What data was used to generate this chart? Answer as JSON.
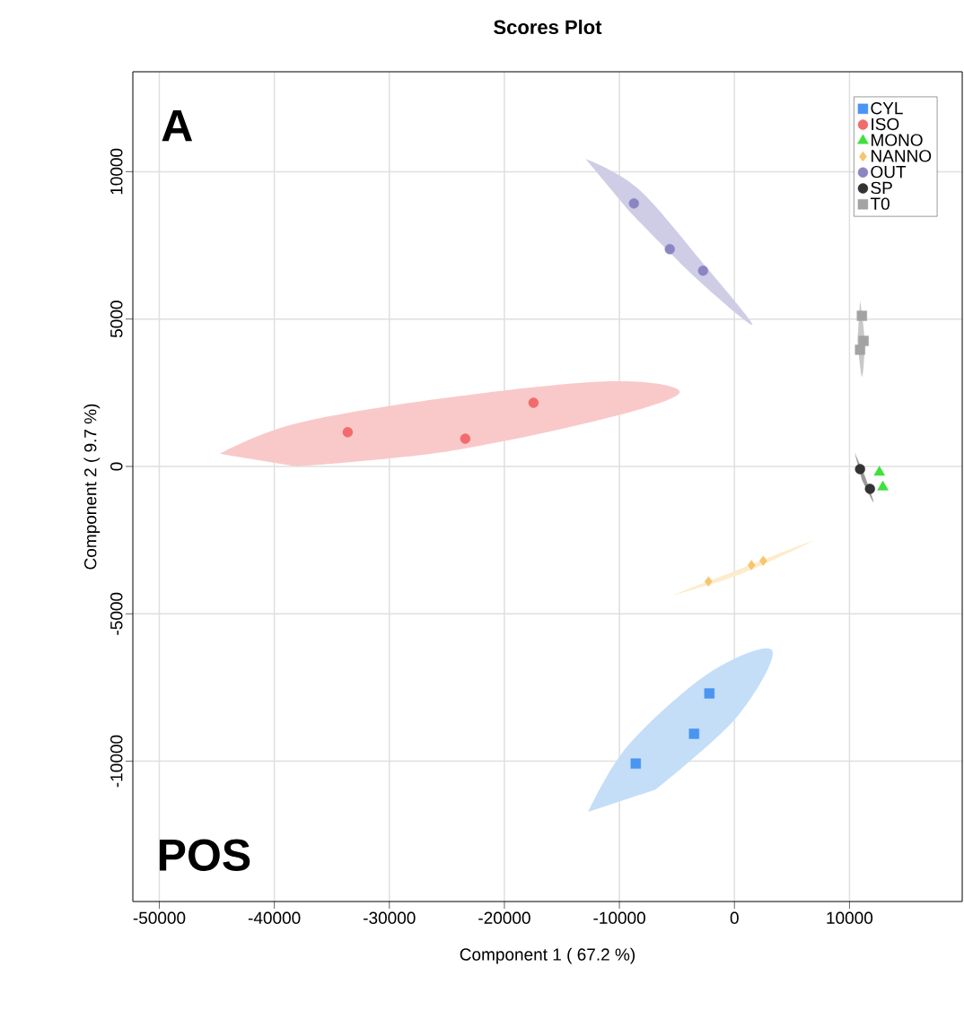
{
  "chart_data": {
    "type": "scatter",
    "title": "Scores Plot",
    "xlabel": "Component 1 ( 67.2 %)",
    "ylabel": "Component 2 ( 9.7 %)",
    "annotations": [
      "A",
      "POS"
    ],
    "xlim": [
      -52300,
      19800
    ],
    "ylim": [
      -14760,
      13390
    ],
    "xticks": [
      -50000,
      -40000,
      -30000,
      -20000,
      -10000,
      0,
      10000
    ],
    "yticks": [
      -10000,
      -5000,
      0,
      5000,
      10000
    ],
    "grid": true,
    "legend": "top right",
    "series": [
      {
        "type": "area",
        "color": "#f9c9c9",
        "x": [
          -44770,
          -38070,
          -24800,
          -10760,
          -4760,
          -10760,
          -24800,
          -38070
        ],
        "values": [
          430,
          1460,
          2340,
          2890,
          2530,
          1670,
          520,
          0
        ]
      },
      {
        "type": "area",
        "color": "#cfcde6",
        "x": [
          -12950,
          -8420,
          -2960,
          1560,
          -3350,
          -9200
        ],
        "values": [
          10440,
          9440,
          7000,
          4810,
          6390,
          8680
        ]
      },
      {
        "type": "area",
        "color": "#c4def8",
        "x": [
          -12710,
          -9200,
          -2180,
          3280,
          160,
          -6860
        ],
        "values": [
          -11720,
          -9440,
          -7000,
          -6240,
          -8520,
          -10960
        ]
      },
      {
        "type": "area",
        "color": "#fdebcc",
        "x": [
          -5690,
          550,
          6790,
          940
        ],
        "values": [
          -4410,
          -3650,
          -2530,
          -3410
        ]
      },
      {
        "type": "area",
        "color": "#c8c8c8",
        "x": [
          10920,
          11310,
          11080,
          10690
        ],
        "values": [
          5630,
          4260,
          3040,
          4260
        ]
      },
      {
        "type": "area",
        "color": "#9a9a9a",
        "x": [
          10450,
          11310,
          12090,
          11080
        ],
        "values": [
          460,
          -300,
          -1220,
          -460
        ]
      },
      {
        "name": "CYL",
        "color": "#4a94f2",
        "marker": "square",
        "x": [
          -8580,
          -3510,
          -2180
        ],
        "values": [
          -10080,
          -9070,
          -7700
        ]
      },
      {
        "name": "ISO",
        "color": "#f26b6b",
        "marker": "circle",
        "x": [
          -33620,
          -23400,
          -17470
        ],
        "values": [
          1160,
          940,
          2160
        ]
      },
      {
        "name": "MONO",
        "color": "#3ee03e",
        "marker": "triangle",
        "x": [
          12600,
          12900
        ],
        "values": [
          -200,
          -700
        ]
      },
      {
        "name": "NANNO",
        "color": "#f7c56e",
        "marker": "diamond",
        "x": [
          -2260,
          1480,
          2500
        ],
        "values": [
          -3900,
          -3350,
          -3200
        ]
      },
      {
        "name": "OUT",
        "color": "#8a86c2",
        "marker": "circle",
        "x": [
          -8740,
          -5620,
          -2730
        ],
        "values": [
          8920,
          7370,
          6640
        ]
      },
      {
        "name": "SP",
        "color": "#333333",
        "marker": "circle",
        "x": [
          10920,
          11620,
          11780
        ],
        "values": [
          -90,
          null,
          -760
        ]
      },
      {
        "name": "T0",
        "color": "#a3a3a3",
        "marker": "square",
        "x": [
          11080,
          11230,
          10920
        ],
        "values": [
          5110,
          4260,
          3960
        ]
      }
    ]
  }
}
